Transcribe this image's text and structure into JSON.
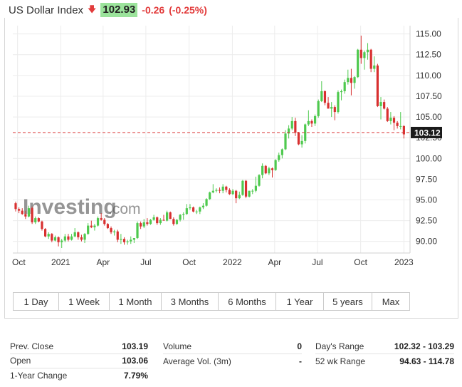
{
  "header": {
    "title": "US Dollar Index",
    "price": "102.93",
    "change": "-0.26",
    "change_pct": "(-0.25%)",
    "down_color": "#e23b3b",
    "price_bg": "#9be39b"
  },
  "watermark": {
    "brand": "Investing",
    "suffix": ".com"
  },
  "chart_data": {
    "type": "candlestick",
    "y_ticks": [
      "115.00",
      "112.50",
      "110.00",
      "107.50",
      "105.00",
      "102.50",
      "100.00",
      "97.50",
      "95.00",
      "92.50",
      "90.00"
    ],
    "ylim": [
      88.6,
      116.0
    ],
    "x_ticks": [
      "Oct",
      "2021",
      "Apr",
      "Jul",
      "Oct",
      "2022",
      "Apr",
      "Jul",
      "Oct",
      "2023"
    ],
    "last_price_label": "103.12",
    "last_price": 103.12,
    "up_color": "#4ec94e",
    "down_color": "#d83030",
    "x": [
      "2020-09-27",
      "2020-10-04",
      "2020-10-11",
      "2020-10-18",
      "2020-10-25",
      "2020-11-01",
      "2020-11-08",
      "2020-11-15",
      "2020-11-22",
      "2020-11-29",
      "2020-12-06",
      "2020-12-13",
      "2020-12-20",
      "2020-12-27",
      "2021-01-03",
      "2021-01-10",
      "2021-01-17",
      "2021-01-24",
      "2021-01-31",
      "2021-02-07",
      "2021-02-14",
      "2021-02-21",
      "2021-02-28",
      "2021-03-07",
      "2021-03-14",
      "2021-03-21",
      "2021-03-28",
      "2021-04-04",
      "2021-04-11",
      "2021-04-18",
      "2021-04-25",
      "2021-05-02",
      "2021-05-09",
      "2021-05-16",
      "2021-05-23",
      "2021-05-30",
      "2021-06-06",
      "2021-06-13",
      "2021-06-20",
      "2021-06-27",
      "2021-07-04",
      "2021-07-11",
      "2021-07-18",
      "2021-07-25",
      "2021-08-01",
      "2021-08-08",
      "2021-08-15",
      "2021-08-22",
      "2021-08-29",
      "2021-09-05",
      "2021-09-12",
      "2021-09-19",
      "2021-09-26",
      "2021-10-03",
      "2021-10-10",
      "2021-10-17",
      "2021-10-24",
      "2021-10-31",
      "2021-11-07",
      "2021-11-14",
      "2021-11-21",
      "2021-11-28",
      "2021-12-05",
      "2021-12-12",
      "2021-12-19",
      "2021-12-26",
      "2022-01-02",
      "2022-01-09",
      "2022-01-16",
      "2022-01-23",
      "2022-01-30",
      "2022-02-06",
      "2022-02-13",
      "2022-02-20",
      "2022-02-27",
      "2022-03-06",
      "2022-03-13",
      "2022-03-20",
      "2022-03-27",
      "2022-04-03",
      "2022-04-10",
      "2022-04-17",
      "2022-04-24",
      "2022-05-01",
      "2022-05-08",
      "2022-05-15",
      "2022-05-22",
      "2022-05-29",
      "2022-06-05",
      "2022-06-12",
      "2022-06-19",
      "2022-06-26",
      "2022-07-03",
      "2022-07-10",
      "2022-07-17",
      "2022-07-24",
      "2022-07-31",
      "2022-08-07",
      "2022-08-14",
      "2022-08-21",
      "2022-08-28",
      "2022-09-04",
      "2022-09-11",
      "2022-09-18",
      "2022-09-25",
      "2022-10-02",
      "2022-10-09",
      "2022-10-16",
      "2022-10-23",
      "2022-10-30",
      "2022-11-06",
      "2022-11-13",
      "2022-11-20",
      "2022-11-27",
      "2022-12-04",
      "2022-12-11",
      "2022-12-18",
      "2022-12-25",
      "2023-01-01",
      "2023-01-08"
    ],
    "ohlc": [
      [
        94.6,
        94.8,
        93.6,
        93.9
      ],
      [
        93.9,
        94.1,
        93.4,
        93.7
      ],
      [
        93.7,
        94.0,
        93.2,
        93.3
      ],
      [
        93.3,
        93.7,
        92.7,
        93.0
      ],
      [
        93.0,
        94.3,
        92.9,
        94.0
      ],
      [
        94.0,
        94.2,
        92.1,
        92.3
      ],
      [
        92.3,
        93.0,
        92.1,
        92.8
      ],
      [
        92.8,
        92.9,
        92.3,
        92.4
      ],
      [
        92.4,
        92.5,
        91.3,
        91.5
      ],
      [
        91.5,
        91.6,
        90.5,
        90.6
      ],
      [
        90.6,
        91.1,
        90.3,
        90.9
      ],
      [
        90.9,
        91.0,
        89.9,
        90.1
      ],
      [
        90.1,
        90.7,
        90.0,
        90.5
      ],
      [
        90.5,
        90.6,
        89.4,
        89.9
      ],
      [
        89.9,
        90.3,
        89.2,
        90.1
      ],
      [
        90.1,
        90.9,
        89.9,
        90.6
      ],
      [
        90.6,
        90.9,
        90.0,
        90.2
      ],
      [
        90.2,
        90.9,
        90.1,
        90.6
      ],
      [
        90.6,
        91.6,
        90.5,
        91.1
      ],
      [
        91.1,
        91.2,
        90.2,
        90.5
      ],
      [
        90.5,
        90.8,
        90.0,
        90.2
      ],
      [
        90.2,
        91.0,
        89.8,
        90.9
      ],
      [
        90.9,
        92.2,
        90.8,
        91.9
      ],
      [
        91.9,
        92.5,
        91.6,
        91.7
      ],
      [
        91.7,
        92.1,
        91.3,
        91.9
      ],
      [
        91.9,
        93.0,
        91.8,
        92.8
      ],
      [
        92.8,
        93.4,
        92.5,
        92.6
      ],
      [
        92.6,
        92.8,
        91.9,
        92.1
      ],
      [
        92.1,
        92.2,
        91.5,
        91.6
      ],
      [
        91.6,
        91.8,
        90.9,
        91.1
      ],
      [
        91.1,
        91.4,
        90.7,
        91.2
      ],
      [
        91.2,
        91.4,
        89.9,
        90.2
      ],
      [
        90.2,
        90.9,
        89.7,
        90.3
      ],
      [
        90.3,
        90.5,
        89.6,
        89.9
      ],
      [
        89.9,
        90.2,
        89.6,
        90.0
      ],
      [
        90.0,
        90.6,
        89.7,
        90.2
      ],
      [
        90.2,
        90.4,
        89.8,
        90.4
      ],
      [
        90.4,
        92.4,
        90.3,
        92.2
      ],
      [
        92.2,
        92.4,
        91.5,
        91.8
      ],
      [
        91.8,
        92.7,
        91.6,
        92.3
      ],
      [
        92.3,
        92.8,
        91.9,
        92.1
      ],
      [
        92.1,
        92.7,
        92.0,
        92.6
      ],
      [
        92.6,
        93.2,
        92.5,
        92.9
      ],
      [
        92.9,
        93.0,
        92.0,
        92.2
      ],
      [
        92.2,
        92.8,
        92.0,
        92.6
      ],
      [
        92.6,
        93.2,
        92.5,
        92.5
      ],
      [
        92.5,
        93.7,
        92.4,
        93.5
      ],
      [
        93.5,
        93.6,
        92.7,
        92.7
      ],
      [
        92.7,
        92.9,
        91.9,
        92.1
      ],
      [
        92.1,
        92.7,
        92.0,
        92.6
      ],
      [
        92.6,
        93.3,
        92.4,
        93.2
      ],
      [
        93.2,
        93.5,
        92.6,
        93.3
      ],
      [
        93.3,
        94.5,
        93.2,
        94.0
      ],
      [
        94.0,
        94.5,
        93.8,
        94.1
      ],
      [
        94.1,
        94.2,
        93.5,
        93.6
      ],
      [
        93.6,
        93.8,
        93.3,
        93.6
      ],
      [
        93.6,
        94.2,
        93.3,
        94.1
      ],
      [
        94.1,
        94.6,
        93.9,
        94.3
      ],
      [
        94.3,
        95.2,
        94.2,
        95.1
      ],
      [
        95.1,
        96.0,
        95.0,
        95.9
      ],
      [
        95.9,
        96.9,
        95.8,
        96.1
      ],
      [
        96.1,
        96.4,
        95.9,
        96.2
      ],
      [
        96.2,
        96.5,
        95.8,
        96.1
      ],
      [
        96.1,
        96.9,
        95.8,
        96.6
      ],
      [
        96.6,
        96.7,
        95.9,
        96.2
      ],
      [
        96.2,
        96.4,
        95.6,
        95.7
      ],
      [
        95.7,
        96.3,
        95.6,
        96.1
      ],
      [
        96.1,
        96.2,
        94.6,
        95.2
      ],
      [
        95.2,
        96.0,
        95.1,
        95.6
      ],
      [
        95.6,
        97.4,
        95.5,
        97.3
      ],
      [
        97.3,
        97.4,
        95.2,
        95.4
      ],
      [
        95.4,
        96.1,
        95.3,
        96.1
      ],
      [
        96.1,
        96.3,
        95.7,
        96.1
      ],
      [
        96.1,
        97.8,
        95.9,
        96.7
      ],
      [
        96.7,
        98.1,
        96.6,
        98.0
      ],
      [
        98.0,
        99.4,
        97.6,
        99.1
      ],
      [
        99.1,
        99.2,
        98.1,
        98.2
      ],
      [
        98.2,
        99.0,
        98.0,
        98.8
      ],
      [
        98.8,
        98.9,
        97.7,
        98.6
      ],
      [
        98.6,
        99.9,
        98.5,
        99.8
      ],
      [
        99.8,
        100.7,
        99.6,
        100.4
      ],
      [
        100.4,
        101.2,
        100.0,
        101.1
      ],
      [
        101.1,
        103.4,
        101.0,
        103.0
      ],
      [
        103.0,
        104.0,
        102.4,
        103.6
      ],
      [
        103.6,
        105.0,
        103.4,
        104.5
      ],
      [
        104.5,
        104.9,
        102.7,
        103.1
      ],
      [
        103.1,
        103.2,
        101.6,
        101.7
      ],
      [
        101.7,
        102.8,
        101.3,
        102.1
      ],
      [
        102.1,
        104.2,
        101.8,
        104.1
      ],
      [
        104.1,
        105.8,
        103.9,
        104.5
      ],
      [
        104.5,
        104.7,
        103.8,
        104.2
      ],
      [
        104.2,
        105.3,
        103.9,
        105.1
      ],
      [
        105.1,
        107.1,
        104.9,
        106.9
      ],
      [
        106.9,
        109.3,
        106.8,
        108.1
      ],
      [
        108.1,
        108.2,
        106.4,
        106.7
      ],
      [
        106.7,
        107.4,
        106.1,
        106.0
      ],
      [
        106.0,
        106.8,
        105.0,
        106.2
      ],
      [
        106.2,
        106.4,
        104.6,
        105.6
      ],
      [
        105.6,
        108.2,
        105.4,
        108.0
      ],
      [
        108.0,
        108.3,
        107.0,
        108.1
      ],
      [
        108.1,
        109.5,
        107.8,
        109.2
      ],
      [
        109.2,
        110.7,
        108.9,
        109.7
      ],
      [
        109.7,
        110.8,
        107.6,
        109.1
      ],
      [
        109.1,
        109.9,
        108.4,
        109.8
      ],
      [
        109.8,
        113.2,
        109.7,
        113.1
      ],
      [
        113.1,
        114.8,
        111.4,
        112.1
      ],
      [
        112.1,
        113.0,
        110.7,
        112.8
      ],
      [
        112.8,
        113.9,
        111.9,
        113.1
      ],
      [
        113.1,
        113.2,
        110.4,
        110.8
      ],
      [
        110.8,
        112.3,
        110.4,
        111.2
      ],
      [
        111.2,
        111.4,
        106.2,
        106.3
      ],
      [
        106.3,
        107.4,
        104.7,
        106.8
      ],
      [
        106.8,
        107.1,
        105.9,
        106.0
      ],
      [
        106.0,
        106.2,
        104.4,
        104.5
      ],
      [
        104.5,
        105.6,
        104.1,
        104.9
      ],
      [
        104.9,
        105.1,
        103.4,
        104.3
      ],
      [
        104.3,
        104.5,
        103.6,
        103.9
      ],
      [
        103.9,
        105.6,
        103.5,
        103.9
      ],
      [
        103.9,
        104.0,
        102.4,
        102.9
      ]
    ]
  },
  "ranges": [
    "1 Day",
    "1 Week",
    "1 Month",
    "3 Months",
    "6 Months",
    "1 Year",
    "5 years",
    "Max"
  ],
  "stats": [
    [
      {
        "label": "Prev. Close",
        "value": "103.19"
      },
      {
        "label": "Open",
        "value": "103.06"
      },
      {
        "label": "1-Year Change",
        "value": "7.79%"
      }
    ],
    [
      {
        "label": "Volume",
        "value": "0"
      },
      {
        "label": "Average Vol. (3m)",
        "value": "-"
      }
    ],
    [
      {
        "label": "Day's Range",
        "value": "102.32 - 103.29"
      },
      {
        "label": "52 wk Range",
        "value": "94.63 - 114.78"
      }
    ]
  ]
}
